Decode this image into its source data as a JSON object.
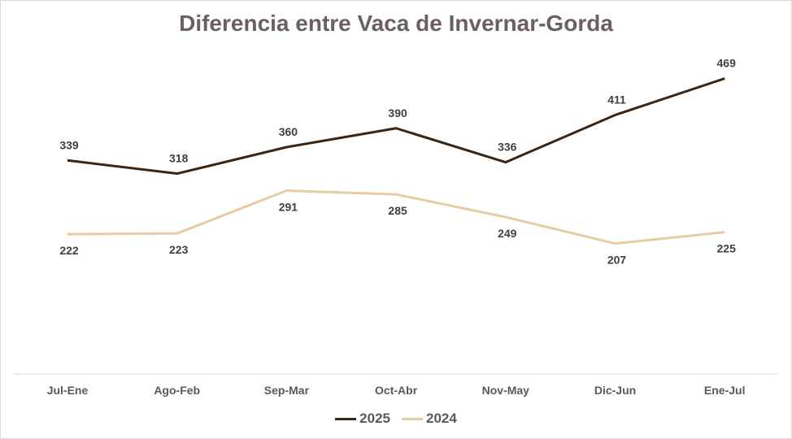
{
  "chart_data": {
    "type": "line",
    "title": "Diferencia entre Vaca de Invernar-Gorda",
    "categories": [
      "Jul-Ene",
      "Ago-Feb",
      "Sep-Mar",
      "Oct-Abr",
      "Nov-May",
      "Dic-Jun",
      "Ene-Jul"
    ],
    "series": [
      {
        "name": "2025",
        "color": "#3d2514",
        "values": [
          339,
          318,
          360,
          390,
          336,
          411,
          469
        ],
        "label_position": "above"
      },
      {
        "name": "2024",
        "color": "#e8cba6",
        "values": [
          222,
          223,
          291,
          285,
          249,
          207,
          225
        ],
        "label_position": "below"
      }
    ],
    "ylim": [
      0,
      500
    ],
    "grid": false,
    "legend": "bottom"
  }
}
